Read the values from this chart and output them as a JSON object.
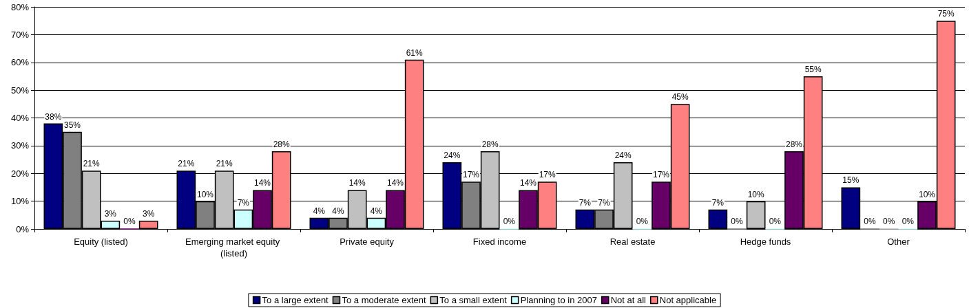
{
  "chart_data": {
    "type": "bar",
    "categories": [
      "Equity (listed)",
      "Emerging market equity (listed)",
      "Private equity",
      "Fixed income",
      "Real estate",
      "Hedge funds",
      "Other"
    ],
    "series": [
      {
        "name": "To a large extent",
        "color": "#000080",
        "values": [
          38,
          21,
          4,
          24,
          7,
          7,
          15
        ],
        "value_labels": [
          "38%",
          "21%",
          "4%",
          "24%",
          "7%",
          "7%",
          "15%"
        ]
      },
      {
        "name": "To a moderate extent",
        "color": "#808080",
        "values": [
          35,
          10,
          4,
          17,
          7,
          0,
          0
        ],
        "value_labels": [
          "35%",
          "10%",
          "4%",
          "17%",
          "7%",
          "0%",
          "0%"
        ]
      },
      {
        "name": "To a small extent",
        "color": "#c0c0c0",
        "values": [
          21,
          21,
          14,
          28,
          24,
          10,
          0
        ],
        "value_labels": [
          "21%",
          "21%",
          "14%",
          "28%",
          "24%",
          "10%",
          "0%"
        ]
      },
      {
        "name": "Planning to in 2007",
        "color": "#ccffff",
        "values": [
          3,
          7,
          4,
          0,
          0,
          0,
          0
        ],
        "value_labels": [
          "3%",
          "7%",
          "4%",
          "0%",
          "0%",
          "0%",
          "0%"
        ]
      },
      {
        "name": "Not at all",
        "color": "#660066",
        "values": [
          0,
          14,
          14,
          14,
          17,
          28,
          10
        ],
        "value_labels": [
          "0%",
          "14%",
          "14%",
          "14%",
          "17%",
          "28%",
          "10%"
        ]
      },
      {
        "name": "Not applicable",
        "color": "#ff8080",
        "values": [
          3,
          28,
          61,
          17,
          45,
          55,
          75
        ],
        "value_labels": [
          "3%",
          "28%",
          "61%",
          "17%",
          "45%",
          "55%",
          "75%"
        ]
      }
    ],
    "ylim": [
      0,
      80
    ],
    "yticks": [
      {
        "value": 0,
        "label": "0%"
      },
      {
        "value": 10,
        "label": "10%"
      },
      {
        "value": 20,
        "label": "20%"
      },
      {
        "value": 30,
        "label": "30%"
      },
      {
        "value": 40,
        "label": "40%"
      },
      {
        "value": 50,
        "label": "50%"
      },
      {
        "value": 60,
        "label": "60%"
      },
      {
        "value": 70,
        "label": "70%"
      },
      {
        "value": 80,
        "label": "80%"
      }
    ],
    "grid": "y",
    "legend": "bottom"
  }
}
